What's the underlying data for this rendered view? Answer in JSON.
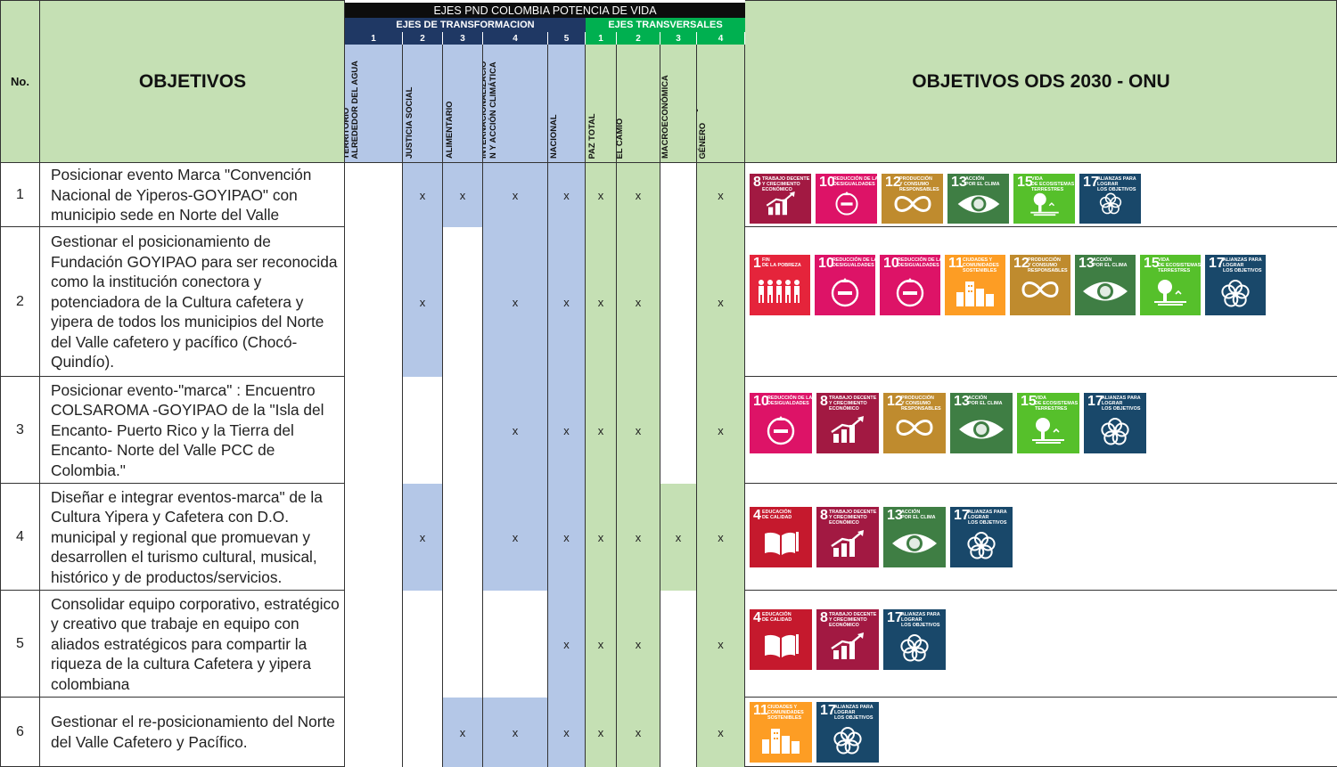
{
  "header": {
    "no_label": "No.",
    "objetivos_label": "OBJETIVOS",
    "pnd_title": "EJES PND COLOMBIA POTENCIA DE VIDA",
    "transformacion_title": "EJES DE TRANSFORMACION",
    "transversales_title": "EJES TRANSVERSALES",
    "ods_title": "OBJETIVOS ODS 2030 - ONU"
  },
  "columns": [
    {
      "num": "1",
      "label": "ORDENAMIENTO DEL\nTERRITORIO\nALREDEDOR DEL AGUA"
    },
    {
      "num": "2",
      "label": "SEGURIDA HUMANA Y\nJUSTICIA SOCIAL"
    },
    {
      "num": "3",
      "label": "DERECHO HUMANO Y\nALIMENTARIO"
    },
    {
      "num": "4",
      "label": "TRANSFORMACIÓN\nPRODUCTIVA,\nINTERNACIONALIZACIÓ\nN Y ACCIÓN CLIMÁTICA"
    },
    {
      "num": "5",
      "label": "CONVERGENCIA\nNACIONAL"
    },
    {
      "num": "1",
      "label": "PAZ TOTAL"
    },
    {
      "num": "2",
      "label": "LOS ACTORES\nDIFERENCIALES PARA\nEL CAMIO"
    },
    {
      "num": "3",
      "label": "ESTABILIDAD\nMACROECONÓMICA"
    },
    {
      "num": "4",
      "label": "POLÍTICA EXTERIOR\nCON ENFOQUE DE\nGÉNERO"
    }
  ],
  "colors": {
    "header_green": "#c5e0b4",
    "pnd_black": "#0d0d0d",
    "transf_blue": "#1f3864",
    "transv_green": "#00b050",
    "num_blue": "#1f3864",
    "num_green": "#00b050",
    "col_blue": "#b4c7e7",
    "col_green": "#c5e0b4",
    "border": "#333333"
  },
  "rows": [
    {
      "no": "1",
      "objetivo": "Posicionar evento Marca \"Convención Nacional de Yiperos-GOYIPAO\" con municipio sede en Norte del Valle",
      "marks": [
        "",
        "x",
        "x",
        "x",
        "x",
        "x",
        "x",
        "",
        "x"
      ],
      "ods": [
        8,
        10,
        12,
        13,
        15,
        17
      ]
    },
    {
      "no": "2",
      "objetivo": "Gestionar el posicionamiento de Fundación GOYIPAO para ser reconocida como la institución conectora y potenciadora de la Cultura cafetera y yipera de todos los municipios del Norte del Valle cafetero y pacífico (Chocó- Quindío).",
      "marks": [
        "",
        "x",
        "",
        "x",
        "x",
        "x",
        "x",
        "",
        "x"
      ],
      "ods": [
        1,
        10,
        10,
        11,
        12,
        13,
        15,
        17
      ]
    },
    {
      "no": "3",
      "objetivo": "Posicionar evento-\"marca\" : Encuentro COLSAROMA -GOYIPAO de la \"Isla del Encanto- Puerto Rico y la Tierra del Encanto- Norte del Valle PCC de Colombia.\"",
      "marks": [
        "",
        "",
        "",
        "x",
        "x",
        "x",
        "x",
        "",
        "x"
      ],
      "ods": [
        10,
        8,
        12,
        13,
        15,
        17
      ]
    },
    {
      "no": "4",
      "objetivo": "Diseñar e integrar eventos-marca\" de la Cultura Yipera y Cafetera con D.O. municipal y regional que promuevan y desarrollen el turismo cultural, musical, histórico y de productos/servicios.",
      "marks": [
        "",
        "x",
        "",
        "x",
        "x",
        "x",
        "x",
        "x",
        "x"
      ],
      "ods": [
        4,
        8,
        13,
        17
      ]
    },
    {
      "no": "5",
      "objetivo": "Consolidar equipo corporativo, estratégico y creativo que trabaje en equipo con aliados estratégicos para compartir la riqueza de la cultura Cafetera y yipera colombiana",
      "marks": [
        "",
        "",
        "",
        "",
        "x",
        "x",
        "x",
        "",
        "x"
      ],
      "ods": [
        4,
        8,
        17
      ]
    },
    {
      "no": "6",
      "objetivo": "Gestionar el re-posicionamiento del Norte del Valle Cafetero y Pacífico.",
      "marks": [
        "",
        "",
        "x",
        "x",
        "x",
        "x",
        "x",
        "",
        "x"
      ],
      "ods": [
        11,
        17
      ]
    }
  ],
  "sdg": {
    "1": {
      "color": "#e5243b",
      "label": "FIN\nDE LA POBREZA",
      "icon": "people-icon"
    },
    "4": {
      "color": "#c5192d",
      "label": "EDUCACIÓN\nDE CALIDAD",
      "icon": "book-icon"
    },
    "8": {
      "color": "#a21942",
      "label": "TRABAJO DECENTE\nY CRECIMIENTO\nECONÓMICO",
      "icon": "growth-chart-icon"
    },
    "10": {
      "color": "#dd1367",
      "label": "REDUCCIÓN DE LAS\nDESIGUALDADES",
      "icon": "equality-icon"
    },
    "11": {
      "color": "#fd9d24",
      "label": "CIUDADES Y\nCOMUNIDADES\nSOSTENIBLES",
      "icon": "city-icon"
    },
    "12": {
      "color": "#bf8b2e",
      "label": "PRODUCCIÓN\nY CONSUMO\nRESPONSABLES",
      "icon": "infinity-icon"
    },
    "13": {
      "color": "#3f7e44",
      "label": "ACCIÓN\nPOR EL CLIMA",
      "icon": "eye-globe-icon"
    },
    "15": {
      "color": "#56c02b",
      "label": "VIDA\nDE ECOSISTEMAS\nTERRESTRES",
      "icon": "tree-icon"
    },
    "17": {
      "color": "#19486a",
      "label": "ALIANZAS PARA\nLOGRAR\nLOS OBJETIVOS",
      "icon": "flower-icon"
    }
  }
}
